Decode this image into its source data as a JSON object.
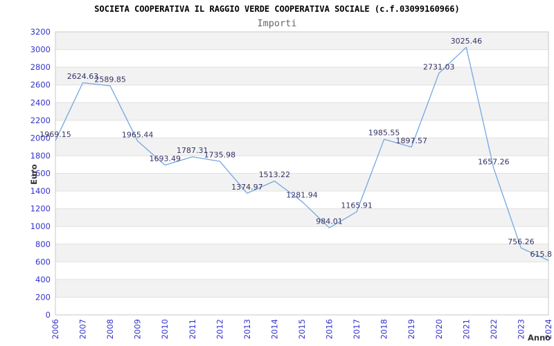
{
  "header": {
    "title": "SOCIETA COOPERATIVA IL RAGGIO VERDE COOPERATIVA SOCIALE (c.f.03099160966)",
    "subtitle": "Importi"
  },
  "chart_data": {
    "type": "line",
    "title": "SOCIETA COOPERATIVA IL RAGGIO VERDE COOPERATIVA SOCIALE (c.f.03099160966)",
    "subtitle": "Importi",
    "xlabel": "Anno",
    "ylabel": "Euro",
    "categories": [
      "2006",
      "2007",
      "2008",
      "2009",
      "2010",
      "2011",
      "2012",
      "2013",
      "2014",
      "2015",
      "2016",
      "2017",
      "2018",
      "2019",
      "2020",
      "2021",
      "2022",
      "2023",
      "2024"
    ],
    "values": [
      1969.15,
      2624.63,
      2589.85,
      1965.44,
      1693.49,
      1787.31,
      1735.98,
      1374.97,
      1513.22,
      1281.94,
      984.01,
      1165.91,
      1985.55,
      1897.57,
      2731.03,
      3025.46,
      1657.26,
      756.26,
      615.8
    ],
    "point_labels": [
      "1969.15",
      "2624.63",
      "2589.85",
      "1965.44",
      "1693.49",
      "1787.31",
      "1735.98",
      "1374.97",
      "1513.22",
      "1281.94",
      "984.01",
      "1165.91",
      "1985.55",
      "1897.57",
      "2731.03",
      "3025.46",
      "1657.26",
      "756.26",
      "615.8"
    ],
    "ylim": [
      0,
      3200
    ],
    "ytick_step": 200,
    "grid": "horizontal-gridlines-with-alternating-bands",
    "legend": "none",
    "colors": {
      "line": "#74a7e0",
      "tick_label": "#3333cc",
      "data_label": "#333366",
      "band": "#f2f2f2",
      "gridline": "#e0e0e0",
      "border": "#c8c8c8",
      "title": "#000000",
      "subtitle": "#666666",
      "axis_name": "#333333",
      "background": "#ffffff"
    }
  }
}
